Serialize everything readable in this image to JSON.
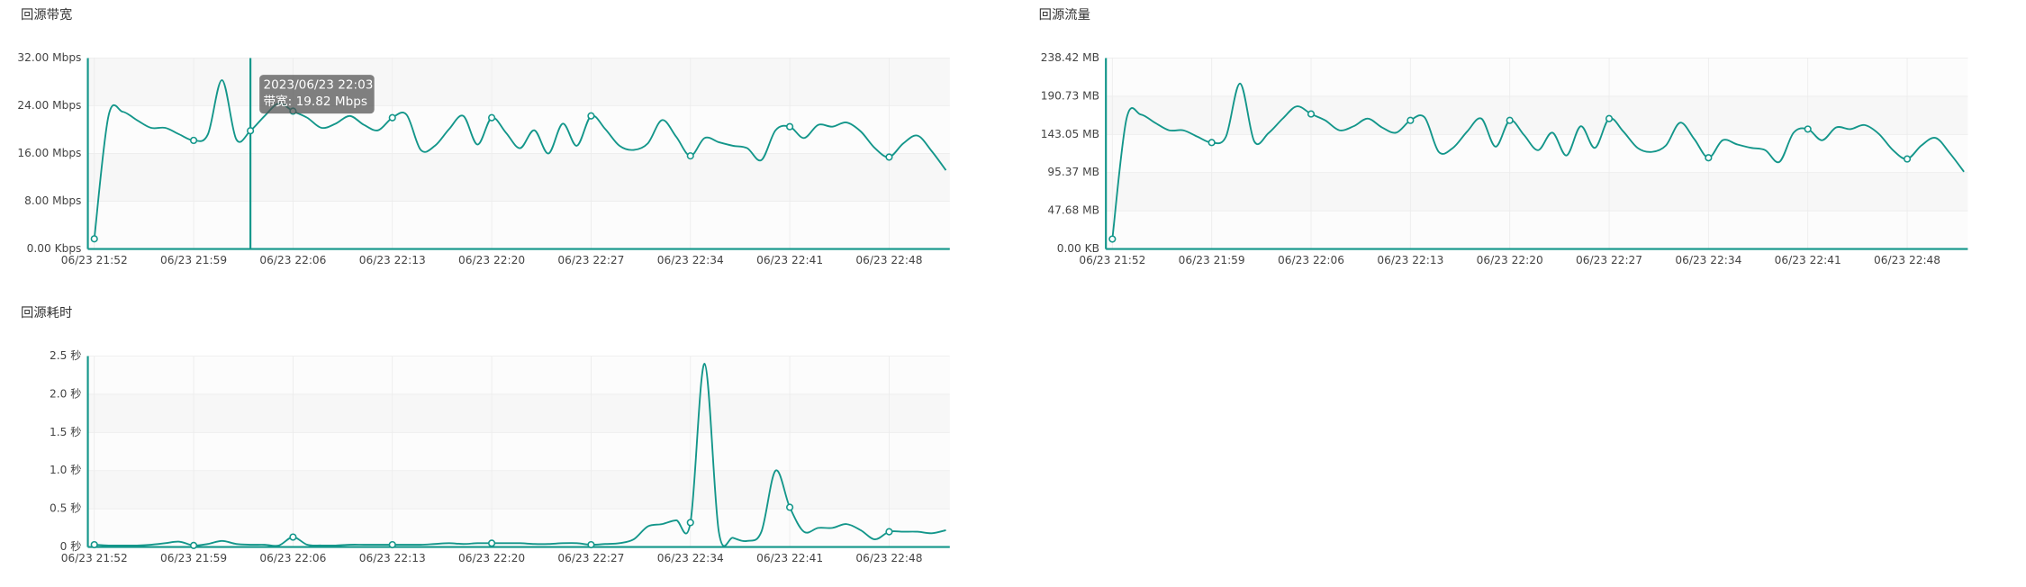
{
  "chart_data": [
    {
      "type": "line",
      "title": "回源带宽",
      "color": "#13968a",
      "categories": [
        "06/23 21:52",
        null,
        null,
        null,
        null,
        null,
        null,
        "06/23 21:59",
        null,
        null,
        null,
        null,
        null,
        null,
        "06/23 22:06",
        null,
        null,
        null,
        null,
        null,
        null,
        "06/23 22:13",
        null,
        null,
        null,
        null,
        null,
        null,
        "06/23 22:20",
        null,
        null,
        null,
        null,
        null,
        null,
        "06/23 22:27",
        null,
        null,
        null,
        null,
        null,
        null,
        "06/23 22:34",
        null,
        null,
        null,
        null,
        null,
        null,
        "06/23 22:41",
        null,
        null,
        null,
        null,
        null,
        null,
        "06/23 22:48",
        null,
        null,
        null,
        null
      ],
      "values": [
        1.7,
        22.3,
        23,
        21.6,
        20.3,
        20.3,
        19.2,
        18.2,
        19.2,
        28.3,
        18.4,
        19.82,
        22.3,
        24.4,
        23.1,
        22,
        20.3,
        21,
        22.3,
        20.8,
        19.9,
        22,
        22.5,
        16.6,
        17.3,
        20.1,
        22.3,
        17.5,
        22,
        19.5,
        16.9,
        19.9,
        16,
        21,
        17.3,
        22.3,
        20.1,
        17.3,
        16.6,
        17.7,
        21.6,
        18.8,
        15.6,
        18.6,
        17.9,
        17.3,
        16.9,
        14.9,
        19.9,
        20.5,
        18.6,
        20.8,
        20.5,
        21.2,
        19.7,
        16.9,
        15.4,
        17.7,
        19,
        16.4,
        13.2
      ],
      "ylim": [
        0,
        32
      ],
      "yticks": [
        {
          "value": 0,
          "label": "0.00 Kbps"
        },
        {
          "value": 8,
          "label": "8.00 Mbps"
        },
        {
          "value": 16,
          "label": "16.00 Mbps"
        },
        {
          "value": 24,
          "label": "24.00 Mbps"
        },
        {
          "value": 32,
          "label": "32.00 Mbps"
        }
      ],
      "grid": true,
      "tooltip": {
        "hover_index": 11,
        "title": "2023/06/23 22:03",
        "label": "带宽: 19.82 Mbps"
      }
    },
    {
      "type": "line",
      "title": "回源流量",
      "color": "#13968a",
      "categories": [
        "06/23 21:52",
        null,
        null,
        null,
        null,
        null,
        null,
        "06/23 21:59",
        null,
        null,
        null,
        null,
        null,
        null,
        "06/23 22:06",
        null,
        null,
        null,
        null,
        null,
        null,
        "06/23 22:13",
        null,
        null,
        null,
        null,
        null,
        null,
        "06/23 22:20",
        null,
        null,
        null,
        null,
        null,
        null,
        "06/23 22:27",
        null,
        null,
        null,
        null,
        null,
        null,
        "06/23 22:34",
        null,
        null,
        null,
        null,
        null,
        null,
        "06/23 22:41",
        null,
        null,
        null,
        null,
        null,
        null,
        "06/23 22:48",
        null,
        null,
        null,
        null
      ],
      "values": [
        12.4,
        162.8,
        167.9,
        157.7,
        148.2,
        148.2,
        140.2,
        132.9,
        140.2,
        206.6,
        134.3,
        144.7,
        162.8,
        178.1,
        168.6,
        160.6,
        148.2,
        153.3,
        162.8,
        151.8,
        145.3,
        160.6,
        164.3,
        121.2,
        126.3,
        146.7,
        162.8,
        127.8,
        160.6,
        142.4,
        123.4,
        145.3,
        116.8,
        153.3,
        126.3,
        162.8,
        146.7,
        126.3,
        121.2,
        129.2,
        157.7,
        137.2,
        113.9,
        135.8,
        130.7,
        126.3,
        123.4,
        108.8,
        145.3,
        149.7,
        135.8,
        151.8,
        149.7,
        154.8,
        143.8,
        123.4,
        112.4,
        129.2,
        138.7,
        119.7,
        96.4
      ],
      "ylim": [
        0,
        238.42
      ],
      "yticks": [
        {
          "value": 0,
          "label": "0.00 KB"
        },
        {
          "value": 47.68,
          "label": "47.68 MB"
        },
        {
          "value": 95.37,
          "label": "95.37 MB"
        },
        {
          "value": 143.05,
          "label": "143.05 MB"
        },
        {
          "value": 190.73,
          "label": "190.73 MB"
        },
        {
          "value": 238.42,
          "label": "238.42 MB"
        }
      ],
      "grid": true
    },
    {
      "type": "line",
      "title": "回源耗时",
      "color": "#13968a",
      "categories": [
        "06/23 21:52",
        null,
        null,
        null,
        null,
        null,
        null,
        "06/23 21:59",
        null,
        null,
        null,
        null,
        null,
        null,
        "06/23 22:06",
        null,
        null,
        null,
        null,
        null,
        null,
        "06/23 22:13",
        null,
        null,
        null,
        null,
        null,
        null,
        "06/23 22:20",
        null,
        null,
        null,
        null,
        null,
        null,
        "06/23 22:27",
        null,
        null,
        null,
        null,
        null,
        null,
        "06/23 22:34",
        null,
        null,
        null,
        null,
        null,
        null,
        "06/23 22:41",
        null,
        null,
        null,
        null,
        null,
        null,
        "06/23 22:48",
        null,
        null,
        null,
        null
      ],
      "values": [
        0.03,
        0.02,
        0.02,
        0.02,
        0.03,
        0.05,
        0.07,
        0.02,
        0.04,
        0.08,
        0.04,
        0.03,
        0.03,
        0.02,
        0.13,
        0.03,
        0.02,
        0.02,
        0.03,
        0.03,
        0.03,
        0.03,
        0.03,
        0.03,
        0.04,
        0.05,
        0.04,
        0.05,
        0.05,
        0.05,
        0.05,
        0.04,
        0.04,
        0.05,
        0.05,
        0.03,
        0.04,
        0.05,
        0.1,
        0.27,
        0.3,
        0.35,
        0.32,
        2.4,
        0.2,
        0.12,
        0.08,
        0.2,
        1.0,
        0.52,
        0.2,
        0.25,
        0.25,
        0.3,
        0.22,
        0.1,
        0.2,
        0.2,
        0.2,
        0.18,
        0.22
      ],
      "ylim": [
        0,
        2.5
      ],
      "yticks": [
        {
          "value": 0,
          "label": "0 秒"
        },
        {
          "value": 0.5,
          "label": "0.5 秒"
        },
        {
          "value": 1,
          "label": "1.0 秒"
        },
        {
          "value": 1.5,
          "label": "1.5 秒"
        },
        {
          "value": 2,
          "label": "2.0 秒"
        },
        {
          "value": 2.5,
          "label": "2.5 秒"
        }
      ],
      "grid": true
    }
  ]
}
